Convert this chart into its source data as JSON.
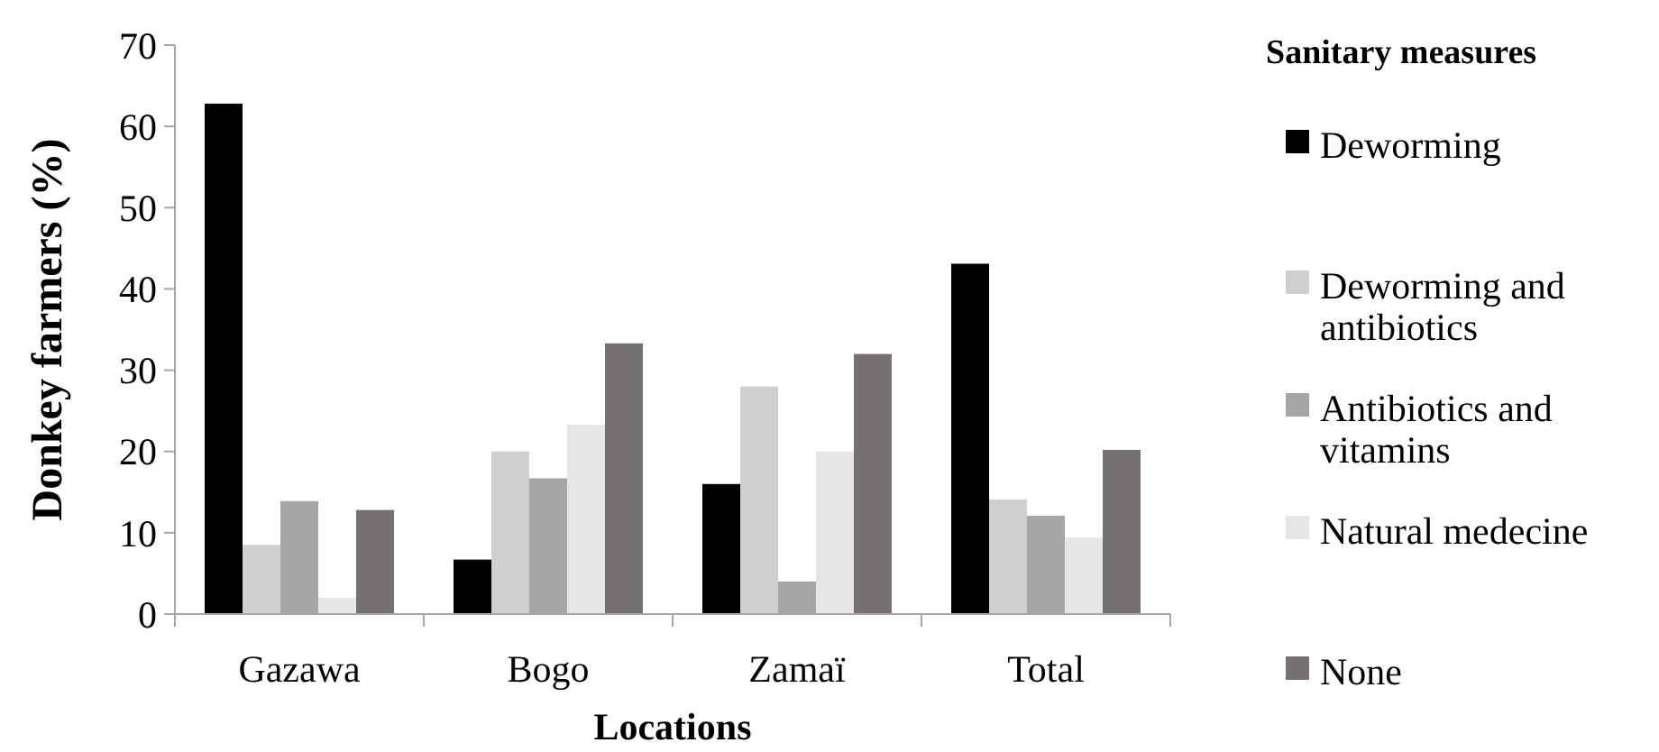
{
  "chart_data": {
    "type": "bar",
    "xlabel": "Locations",
    "ylabel": "Donkey farmers (%)",
    "legend_title": "Sanitary measures",
    "legend": "right",
    "categories": [
      "Gazawa",
      "Bogo",
      "Zamaï",
      "Total"
    ],
    "series": [
      {
        "name": "Deworming",
        "color": "#000000",
        "values": [
          62.8,
          6.7,
          16,
          43.1
        ]
      },
      {
        "name": "Deworming and antibiotics",
        "color": "#d0cece",
        "values": [
          8.5,
          20,
          28,
          14.1
        ]
      },
      {
        "name": "Antibiotics and vitamins",
        "color": "#a6a6a6",
        "values": [
          13.9,
          16.7,
          4,
          12.1
        ]
      },
      {
        "name": "Natural medecine",
        "color": "#e7e6e6",
        "values": [
          2,
          23.3,
          20,
          9.4
        ]
      },
      {
        "name": "None",
        "color": "#767171",
        "values": [
          12.8,
          33.3,
          32,
          20.2
        ]
      }
    ],
    "ylim": [
      0,
      70
    ],
    "yticks": [
      0,
      10,
      20,
      30,
      40,
      50,
      60,
      70
    ]
  }
}
